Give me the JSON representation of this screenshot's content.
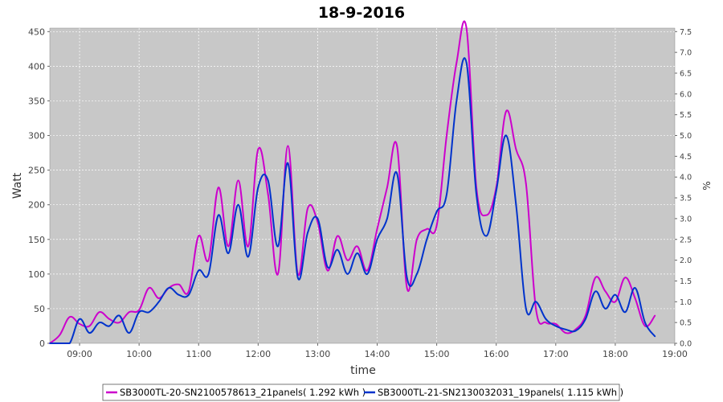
{
  "chart_data": {
    "type": "line",
    "title": "18-9-2016",
    "xlabel": "time",
    "ylabel": "Watt",
    "y2label": "%",
    "xlim": [
      "08:30",
      "19:00"
    ],
    "ylim": [
      0,
      455
    ],
    "y2lim": [
      0,
      7.583
    ],
    "x_ticks": [
      "09:00",
      "10:00",
      "11:00",
      "12:00",
      "13:00",
      "14:00",
      "15:00",
      "16:00",
      "17:00",
      "18:00",
      "19:00"
    ],
    "y_ticks": [
      0,
      50,
      100,
      150,
      200,
      250,
      300,
      350,
      400,
      450
    ],
    "y2_ticks": [
      "0.0",
      "0.5",
      "1.0",
      "1.5",
      "2.0",
      "2.5",
      "3.0",
      "3.5",
      "4.0",
      "4.5",
      "5.0",
      "5.5",
      "6.0",
      "6.5",
      "7.0",
      "7.5"
    ],
    "grid": true,
    "legend_position": "bottom",
    "x": [
      "08:30",
      "08:40",
      "08:50",
      "09:00",
      "09:10",
      "09:20",
      "09:30",
      "09:40",
      "09:50",
      "10:00",
      "10:10",
      "10:20",
      "10:30",
      "10:40",
      "10:50",
      "11:00",
      "11:10",
      "11:20",
      "11:30",
      "11:40",
      "11:50",
      "12:00",
      "12:10",
      "12:20",
      "12:30",
      "12:40",
      "12:50",
      "13:00",
      "13:10",
      "13:20",
      "13:30",
      "13:40",
      "13:50",
      "14:00",
      "14:10",
      "14:20",
      "14:30",
      "14:40",
      "14:50",
      "15:00",
      "15:10",
      "15:20",
      "15:30",
      "15:40",
      "15:50",
      "16:00",
      "16:10",
      "16:20",
      "16:30",
      "16:40",
      "16:50",
      "17:00",
      "17:10",
      "17:20",
      "17:30",
      "17:40",
      "17:50",
      "18:00",
      "18:10",
      "18:20",
      "18:30",
      "18:40"
    ],
    "series": [
      {
        "name": "SB3000TL-20-SN2100578613_21panels( 1.292 kWh )",
        "color": "#cc00cc",
        "values": [
          0,
          12,
          38,
          28,
          25,
          45,
          35,
          30,
          45,
          48,
          80,
          65,
          80,
          85,
          75,
          155,
          120,
          225,
          140,
          235,
          140,
          280,
          215,
          100,
          285,
          100,
          195,
          175,
          105,
          155,
          120,
          140,
          105,
          165,
          225,
          285,
          80,
          150,
          165,
          170,
          300,
          405,
          455,
          225,
          185,
          225,
          335,
          280,
          230,
          50,
          30,
          28,
          15,
          20,
          40,
          95,
          75,
          60,
          95,
          65,
          25,
          40
        ]
      },
      {
        "name": "SB3000TL-21-SN2130032031_19panels( 1.115 kWh )",
        "color": "#0033cc",
        "values": [
          0,
          0,
          0,
          35,
          15,
          30,
          25,
          40,
          15,
          45,
          45,
          60,
          80,
          70,
          70,
          105,
          100,
          185,
          130,
          200,
          125,
          225,
          235,
          140,
          260,
          95,
          160,
          180,
          110,
          135,
          100,
          130,
          100,
          150,
          180,
          245,
          95,
          100,
          150,
          190,
          215,
          350,
          405,
          215,
          155,
          220,
          300,
          200,
          50,
          60,
          35,
          25,
          20,
          18,
          35,
          75,
          50,
          70,
          45,
          80,
          30,
          10
        ]
      }
    ]
  }
}
